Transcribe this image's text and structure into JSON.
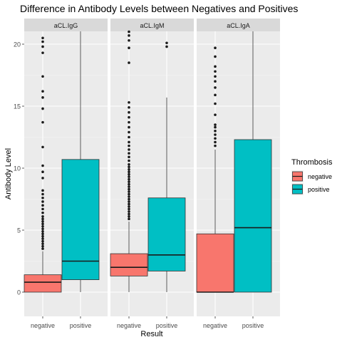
{
  "chart_data": {
    "type": "box",
    "title": "Difference in Antibody Levels between Negatives and Positives",
    "xlabel": "Result",
    "ylabel": "Antibody Level",
    "ylim": [
      -2,
      21
    ],
    "yticks": [
      0,
      5,
      10,
      15,
      20
    ],
    "categories": [
      "negative",
      "positive"
    ],
    "grid": true,
    "legend": {
      "title": "Thrombosis",
      "position": "right",
      "entries": [
        {
          "name": "negative",
          "color": "#F8766D"
        },
        {
          "name": "positive",
          "color": "#00BFC4"
        }
      ]
    },
    "panels": [
      {
        "label": "aCL.IgG",
        "boxes": [
          {
            "category": "negative",
            "color": "#F8766D",
            "q1": 0.0,
            "median": 0.8,
            "q3": 1.4,
            "whisker_low": 0.0,
            "whisker_high": 3.3,
            "outliers": [
              3.5,
              3.7,
              3.9,
              4.1,
              4.3,
              4.5,
              4.7,
              4.9,
              5.1,
              5.3,
              5.5,
              5.7,
              5.9,
              6.1,
              6.4,
              6.7,
              7.0,
              7.3,
              7.6,
              7.9,
              8.2,
              9.2,
              9.7,
              10.2,
              11.7,
              13.7,
              14.8,
              15.7,
              16.2,
              17.4,
              19.3,
              19.8,
              20.2,
              20.5
            ]
          },
          {
            "category": "positive",
            "color": "#00BFC4",
            "q1": 1.0,
            "median": 2.5,
            "q3": 10.7,
            "whisker_low": 0.0,
            "whisker_high": 21.5,
            "outliers": []
          }
        ]
      },
      {
        "label": "aCL.IgM",
        "boxes": [
          {
            "category": "negative",
            "color": "#F8766D",
            "q1": 1.3,
            "median": 2.0,
            "q3": 3.1,
            "whisker_low": 0.0,
            "whisker_high": 5.7,
            "outliers": [
              5.9,
              6.1,
              6.3,
              6.5,
              6.7,
              6.9,
              7.1,
              7.3,
              7.5,
              7.7,
              7.9,
              8.1,
              8.3,
              8.5,
              8.7,
              8.9,
              9.1,
              9.3,
              9.5,
              9.7,
              9.9,
              10.1,
              10.3,
              10.6,
              10.9,
              11.2,
              11.5,
              11.8,
              12.1,
              12.5,
              12.9,
              13.3,
              13.7,
              14.1,
              14.5,
              14.9,
              15.3,
              18.5,
              19.7,
              20.3,
              20.7,
              21.0
            ]
          },
          {
            "category": "positive",
            "color": "#00BFC4",
            "q1": 1.7,
            "median": 3.0,
            "q3": 7.6,
            "whisker_low": 0.0,
            "whisker_high": 15.7,
            "outliers": [
              19.8,
              20.1
            ]
          }
        ]
      },
      {
        "label": "aCL.IgA",
        "boxes": [
          {
            "category": "negative",
            "color": "#F8766D",
            "q1": 0.0,
            "median": 0.0,
            "q3": 4.7,
            "whisker_low": 0.0,
            "whisker_high": 11.5,
            "outliers": [
              11.8,
              12.1,
              12.4,
              12.7,
              13.0,
              13.3,
              13.5,
              14.3,
              15.2,
              15.9,
              16.5,
              17.0,
              17.4,
              17.8,
              18.2,
              19.0,
              19.7
            ]
          },
          {
            "category": "positive",
            "color": "#00BFC4",
            "q1": 0.0,
            "median": 5.2,
            "q3": 12.3,
            "whisker_low": 0.0,
            "whisker_high": 21.5,
            "outliers": []
          }
        ]
      }
    ]
  }
}
